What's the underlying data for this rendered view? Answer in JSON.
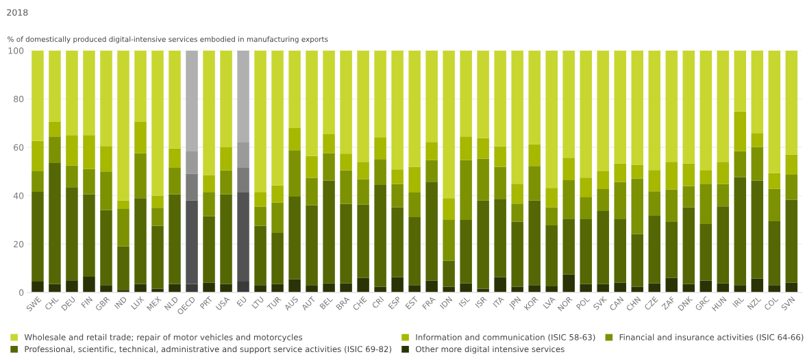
{
  "chart_data": {
    "type": "bar",
    "stacked": true,
    "title": "2018",
    "ylabel": "% of domestically produced digital-intensive services embodied in manufacturing exports",
    "categories": [
      "SWE",
      "CHL",
      "DEU",
      "FIN",
      "GBR",
      "IND",
      "LUX",
      "MEX",
      "NLD",
      "OECD",
      "PRT",
      "USA",
      "EU",
      "LTU",
      "TUR",
      "AUS",
      "AUT",
      "BEL",
      "BRA",
      "CHE",
      "CRI",
      "ESP",
      "EST",
      "FRA",
      "IDN",
      "ISL",
      "ISR",
      "ITA",
      "JPN",
      "KOR",
      "LVA",
      "NOR",
      "POL",
      "SVK",
      "CAN",
      "CHN",
      "CZE",
      "ZAF",
      "DNK",
      "GRC",
      "HUN",
      "IRL",
      "NZL",
      "COL",
      "SVN"
    ],
    "series": [
      {
        "name": "Other more digital intensive services",
        "color": "#2a3305",
        "colors": [
          "#2a3305",
          "#2a3305",
          "#2a3305",
          "#2a3305",
          "#2a3305",
          "#2a3305",
          "#2a3305",
          "#2a3305",
          "#2a3305",
          "#3a3a3a",
          "#2a3305",
          "#2a3305",
          "#3a3a3a",
          "#2a3305",
          "#2a3305",
          "#2a3305",
          "#2a3305",
          "#2a3305",
          "#2a3305",
          "#2a3305",
          "#2a3305",
          "#2a3305",
          "#2a3305",
          "#2a3305",
          "#2a3305",
          "#2a3305",
          "#2a3305",
          "#2a3305",
          "#2a3305",
          "#2a3305",
          "#2a3305",
          "#2a3305",
          "#2a3305",
          "#2a3305",
          "#2a3305",
          "#2a3305",
          "#2a3305",
          "#2a3305",
          "#2a3305",
          "#2a3305",
          "#2a3305",
          "#2a3305",
          "#2a3305",
          "#2a3305",
          "#2a3305"
        ],
        "values": [
          4.5,
          3.5,
          5,
          6.5,
          3,
          1,
          3.5,
          1.5,
          3.5,
          3.5,
          4,
          3.5,
          4.5,
          3,
          3.4,
          5.4,
          3,
          3.7,
          3.7,
          6,
          2.4,
          6.3,
          3,
          4.9,
          2.3,
          3.7,
          1.5,
          6.3,
          2.3,
          3,
          2.5,
          7.4,
          3.4,
          3.4,
          4,
          2.3,
          3.7,
          6,
          3.4,
          4.9,
          3.7,
          3,
          5.8,
          3,
          4
        ]
      },
      {
        "name": "Professional, scientific, technical, administrative and support service activities (ISIC 69-82)",
        "color": "#546704",
        "colors": [
          "#546704",
          "#546704",
          "#546704",
          "#546704",
          "#546704",
          "#546704",
          "#546704",
          "#546704",
          "#546704",
          "#525252",
          "#546704",
          "#546704",
          "#525252",
          "#546704",
          "#546704",
          "#546704",
          "#546704",
          "#546704",
          "#546704",
          "#546704",
          "#546704",
          "#546704",
          "#546704",
          "#546704",
          "#546704",
          "#546704",
          "#546704",
          "#546704",
          "#546704",
          "#546704",
          "#546704",
          "#546704",
          "#546704",
          "#546704",
          "#546704",
          "#546704",
          "#546704",
          "#546704",
          "#546704",
          "#546704",
          "#546704",
          "#546704",
          "#546704",
          "#546704",
          "#546704"
        ],
        "values": [
          37.1,
          50,
          38.5,
          34,
          31,
          18,
          35.5,
          26,
          37,
          34.5,
          27.5,
          37,
          37,
          24.5,
          21.2,
          34.2,
          33,
          42.6,
          32.9,
          30.3,
          42,
          28.9,
          28.1,
          40.9,
          10.8,
          26.3,
          36.5,
          32.4,
          26.9,
          35,
          25.2,
          23.1,
          26.9,
          30.3,
          26.3,
          21.9,
          28,
          23.1,
          31.8,
          23.4,
          31.9,
          44.7,
          40.5,
          26.4,
          34.3
        ]
      },
      {
        "name": "Financial and insurance activities (ISIC 64-66)",
        "color": "#7d9203",
        "colors": [
          "#7d9203",
          "#7d9203",
          "#7d9203",
          "#7d9203",
          "#7d9203",
          "#7d9203",
          "#7d9203",
          "#7d9203",
          "#7d9203",
          "#7a7a7a",
          "#7d9203",
          "#7d9203",
          "#7a7a7a",
          "#7d9203",
          "#7d9203",
          "#7d9203",
          "#7d9203",
          "#7d9203",
          "#7d9203",
          "#7d9203",
          "#7d9203",
          "#7d9203",
          "#7d9203",
          "#7d9203",
          "#7d9203",
          "#7d9203",
          "#7d9203",
          "#7d9203",
          "#7d9203",
          "#7d9203",
          "#7d9203",
          "#7d9203",
          "#7d9203",
          "#7d9203",
          "#7d9203",
          "#7d9203",
          "#7d9203",
          "#7d9203",
          "#7d9203",
          "#7d9203",
          "#7d9203",
          "#7d9203",
          "#7d9203",
          "#7d9203",
          "#7d9203"
        ],
        "values": [
          8.5,
          11,
          9,
          10.5,
          16,
          15.5,
          18.5,
          7.5,
          11,
          11,
          10,
          10,
          10,
          8,
          12.5,
          19.2,
          11.4,
          11.3,
          13.9,
          10.5,
          10.7,
          9.6,
          10.2,
          8.9,
          16.9,
          24.7,
          17.3,
          13.2,
          7.5,
          14.3,
          7.5,
          15.9,
          9,
          9,
          15.3,
          22.9,
          10.1,
          13.5,
          8.8,
          16.6,
          9.2,
          10.7,
          13.8,
          13.5,
          10.4
        ]
      },
      {
        "name": "Information and communication (ISIC 58-63)",
        "color": "#a6b800",
        "colors": [
          "#a6b800",
          "#a6b800",
          "#a6b800",
          "#a6b800",
          "#a6b800",
          "#a6b800",
          "#a6b800",
          "#a6b800",
          "#a6b800",
          "#9a9a9a",
          "#a6b800",
          "#a6b800",
          "#9a9a9a",
          "#a6b800",
          "#a6b800",
          "#a6b800",
          "#a6b800",
          "#a6b800",
          "#a6b800",
          "#a6b800",
          "#a6b800",
          "#a6b800",
          "#a6b800",
          "#a6b800",
          "#a6b800",
          "#a6b800",
          "#a6b800",
          "#a6b800",
          "#a6b800",
          "#a6b800",
          "#a6b800",
          "#a6b800",
          "#a6b800",
          "#a6b800",
          "#a6b800",
          "#a6b800",
          "#a6b800",
          "#a6b800",
          "#a6b800",
          "#a6b800",
          "#a6b800",
          "#a6b800",
          "#a6b800",
          "#a6b800",
          "#a6b800"
        ],
        "values": [
          12.5,
          6,
          12.5,
          14,
          10.5,
          3.5,
          13,
          5,
          8,
          9.5,
          7,
          9.5,
          10.5,
          6,
          7.1,
          9.1,
          9,
          7.8,
          6.9,
          7.2,
          9.1,
          6.1,
          10.6,
          7.5,
          9,
          9.8,
          8.5,
          8.5,
          8.2,
          9,
          8,
          9.3,
          8.2,
          7.4,
          7.7,
          5.7,
          8.8,
          11.4,
          9.3,
          5.7,
          9.2,
          16.4,
          5.8,
          6.4,
          8.3
        ]
      },
      {
        "name": "Wholesale and retail trade; repair of motor vehicles and motorcycles",
        "color": "#c8d630",
        "colors": [
          "#c8d630",
          "#c8d630",
          "#c8d630",
          "#c8d630",
          "#c8d630",
          "#c8d630",
          "#c8d630",
          "#c8d630",
          "#c8d630",
          "#b0b0b0",
          "#c8d630",
          "#c8d630",
          "#b0b0b0",
          "#c8d630",
          "#c8d630",
          "#c8d630",
          "#c8d630",
          "#c8d630",
          "#c8d630",
          "#c8d630",
          "#c8d630",
          "#c8d630",
          "#c8d630",
          "#c8d630",
          "#c8d630",
          "#c8d630",
          "#c8d630",
          "#c8d630",
          "#c8d630",
          "#c8d630",
          "#c8d630",
          "#c8d630",
          "#c8d630",
          "#c8d630",
          "#c8d630",
          "#c8d630",
          "#c8d630",
          "#c8d630",
          "#c8d630",
          "#c8d630",
          "#c8d630",
          "#c8d630",
          "#c8d630",
          "#c8d630",
          "#c8d630"
        ],
        "values": [
          37.4,
          29.5,
          35,
          35,
          39.5,
          62,
          29.5,
          60,
          40.5,
          41.5,
          51.5,
          40,
          38,
          58.5,
          55.8,
          32.1,
          43.6,
          34.6,
          42.6,
          46,
          35.8,
          49.1,
          48.1,
          37.8,
          61,
          35.5,
          36.2,
          39.6,
          55.1,
          38.7,
          56.8,
          44.3,
          52.5,
          49.9,
          46.7,
          47.2,
          49.4,
          46,
          46.7,
          49.4,
          46,
          25.2,
          34.1,
          50.7,
          43
        ]
      }
    ],
    "ylim": [
      0,
      100
    ],
    "yticks": [
      0,
      20,
      40,
      60,
      80,
      100
    ],
    "grid": "y",
    "legend": "bottom"
  }
}
